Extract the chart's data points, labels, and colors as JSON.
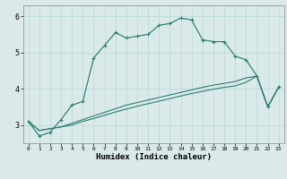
{
  "xlabel": "Humidex (Indice chaleur)",
  "bg_color": "#daeaea",
  "line_color": "#2e7d6e",
  "grid_color": "#b8d8d8",
  "xlim": [
    -0.5,
    23.5
  ],
  "ylim": [
    2.5,
    6.3
  ],
  "yticks": [
    3,
    4,
    5,
    6
  ],
  "xticks": [
    0,
    1,
    2,
    3,
    4,
    5,
    6,
    7,
    8,
    9,
    10,
    11,
    12,
    13,
    14,
    15,
    16,
    17,
    18,
    19,
    20,
    21,
    22,
    23
  ],
  "line1_x": [
    0,
    1,
    2,
    3,
    4,
    5,
    6,
    7,
    8,
    9,
    10,
    11,
    12,
    13,
    14,
    15,
    16,
    17,
    18,
    19,
    20,
    21,
    22,
    23
  ],
  "line1_y": [
    3.1,
    2.7,
    2.8,
    3.15,
    3.55,
    3.65,
    4.85,
    5.2,
    5.55,
    5.4,
    5.45,
    5.5,
    5.75,
    5.8,
    5.95,
    5.9,
    5.35,
    5.3,
    5.3,
    4.9,
    4.8,
    4.35,
    3.5,
    4.05
  ],
  "line2_x": [
    0,
    1,
    2,
    3,
    4,
    5,
    6,
    7,
    8,
    9,
    10,
    11,
    12,
    13,
    14,
    15,
    16,
    17,
    18,
    19,
    20,
    21,
    22,
    23
  ],
  "line2_y": [
    3.1,
    2.7,
    2.8,
    3.15,
    3.55,
    3.65,
    4.85,
    5.2,
    5.55,
    5.4,
    5.45,
    5.5,
    5.75,
    5.8,
    5.95,
    5.9,
    5.35,
    5.3,
    5.3,
    4.9,
    4.8,
    4.35,
    3.5,
    4.05
  ],
  "line3_x": [
    0,
    1,
    2,
    3,
    4,
    5,
    6,
    7,
    8,
    9,
    10,
    11,
    12,
    13,
    14,
    15,
    16,
    17,
    18,
    19,
    20,
    21,
    22,
    23
  ],
  "line3_y": [
    3.1,
    2.85,
    2.9,
    2.95,
    3.05,
    3.15,
    3.25,
    3.35,
    3.45,
    3.55,
    3.62,
    3.69,
    3.76,
    3.83,
    3.9,
    3.97,
    4.04,
    4.1,
    4.15,
    4.2,
    4.3,
    4.35,
    3.5,
    4.05
  ],
  "line4_x": [
    0,
    1,
    2,
    3,
    4,
    5,
    6,
    7,
    8,
    9,
    10,
    11,
    12,
    13,
    14,
    15,
    16,
    17,
    18,
    19,
    20,
    21,
    22,
    23
  ],
  "line4_y": [
    3.1,
    2.85,
    2.9,
    2.95,
    3.0,
    3.1,
    3.18,
    3.27,
    3.36,
    3.44,
    3.52,
    3.59,
    3.66,
    3.73,
    3.8,
    3.87,
    3.93,
    3.99,
    4.04,
    4.08,
    4.18,
    4.35,
    3.5,
    4.05
  ]
}
